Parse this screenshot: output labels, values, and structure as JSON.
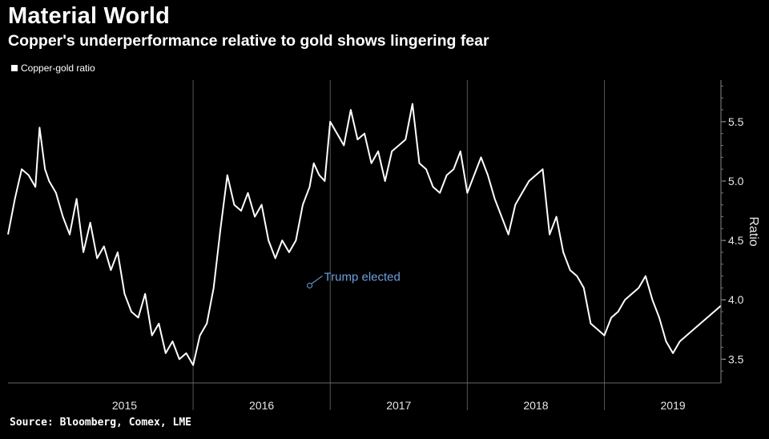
{
  "header": {
    "title": "Material World",
    "subtitle": "Copper's underperformance relative to gold shows lingering fear"
  },
  "legend": {
    "label": "Copper-gold ratio"
  },
  "source": "Source: Bloomberg, Comex, LME",
  "colors": {
    "background": "#000000",
    "line": "#ffffff",
    "annotation": "#6f9fe0",
    "grid": "#555555"
  },
  "chart_data": {
    "type": "line",
    "title": "Material World",
    "subtitle": "Copper's underperformance relative to gold shows lingering fear",
    "xlabel": "",
    "ylabel": "Ratio",
    "x_ticks": [
      "2015",
      "2016",
      "2017",
      "2018",
      "2019"
    ],
    "y_ticks": [
      3.5,
      4.0,
      4.5,
      5.0,
      5.5
    ],
    "ylim": [
      3.3,
      5.85
    ],
    "xlim": [
      2014.65,
      2019.85
    ],
    "grid": "vertical year separators",
    "legend_position": "top-left",
    "series": [
      {
        "name": "Copper-gold ratio",
        "x": [
          2014.65,
          2014.7,
          2014.75,
          2014.8,
          2014.85,
          2014.88,
          2014.92,
          2014.95,
          2015.0,
          2015.05,
          2015.1,
          2015.15,
          2015.2,
          2015.25,
          2015.3,
          2015.35,
          2015.4,
          2015.45,
          2015.5,
          2015.55,
          2015.6,
          2015.65,
          2015.7,
          2015.75,
          2015.8,
          2015.85,
          2015.9,
          2015.95,
          2016.0,
          2016.05,
          2016.1,
          2016.15,
          2016.2,
          2016.25,
          2016.3,
          2016.35,
          2016.4,
          2016.45,
          2016.5,
          2016.55,
          2016.6,
          2016.65,
          2016.7,
          2016.75,
          2016.8,
          2016.85,
          2016.88,
          2016.92,
          2016.96,
          2017.0,
          2017.05,
          2017.1,
          2017.15,
          2017.2,
          2017.25,
          2017.3,
          2017.35,
          2017.4,
          2017.45,
          2017.5,
          2017.55,
          2017.6,
          2017.65,
          2017.7,
          2017.75,
          2017.8,
          2017.85,
          2017.9,
          2017.95,
          2018.0,
          2018.05,
          2018.1,
          2018.15,
          2018.2,
          2018.25,
          2018.3,
          2018.35,
          2018.4,
          2018.45,
          2018.5,
          2018.55,
          2018.6,
          2018.65,
          2018.7,
          2018.75,
          2018.8,
          2018.85,
          2018.9,
          2018.95,
          2019.0,
          2019.05,
          2019.1,
          2019.15,
          2019.2,
          2019.25,
          2019.3,
          2019.35,
          2019.4,
          2019.45,
          2019.5,
          2019.55,
          2019.6,
          2019.65,
          2019.7,
          2019.75,
          2019.8,
          2019.85
        ],
        "y": [
          4.55,
          4.85,
          5.1,
          5.05,
          4.95,
          5.45,
          5.1,
          5.0,
          4.9,
          4.7,
          4.55,
          4.85,
          4.4,
          4.65,
          4.35,
          4.45,
          4.25,
          4.4,
          4.05,
          3.9,
          3.85,
          4.05,
          3.7,
          3.8,
          3.55,
          3.65,
          3.5,
          3.55,
          3.45,
          3.7,
          3.8,
          4.1,
          4.6,
          5.05,
          4.8,
          4.75,
          4.9,
          4.7,
          4.8,
          4.5,
          4.35,
          4.5,
          4.4,
          4.5,
          4.8,
          4.95,
          5.15,
          5.05,
          5.0,
          5.5,
          5.4,
          5.3,
          5.6,
          5.35,
          5.4,
          5.15,
          5.25,
          5.0,
          5.25,
          5.3,
          5.35,
          5.65,
          5.15,
          5.1,
          4.95,
          4.9,
          5.05,
          5.1,
          5.25,
          4.9,
          5.05,
          5.2,
          5.05,
          4.85,
          4.7,
          4.55,
          4.8,
          4.9,
          5.0,
          5.05,
          5.1,
          4.55,
          4.7,
          4.4,
          4.25,
          4.2,
          4.1,
          3.8,
          3.75,
          3.7,
          3.85,
          3.9,
          4.0,
          4.05,
          4.1,
          4.2,
          4.0,
          3.85,
          3.65,
          3.55,
          3.65,
          3.7,
          3.75,
          3.8,
          3.85,
          3.9,
          3.95
        ]
      }
    ],
    "annotations": [
      {
        "text": "Trump elected",
        "x": 2016.85,
        "y": 4.12
      }
    ]
  }
}
